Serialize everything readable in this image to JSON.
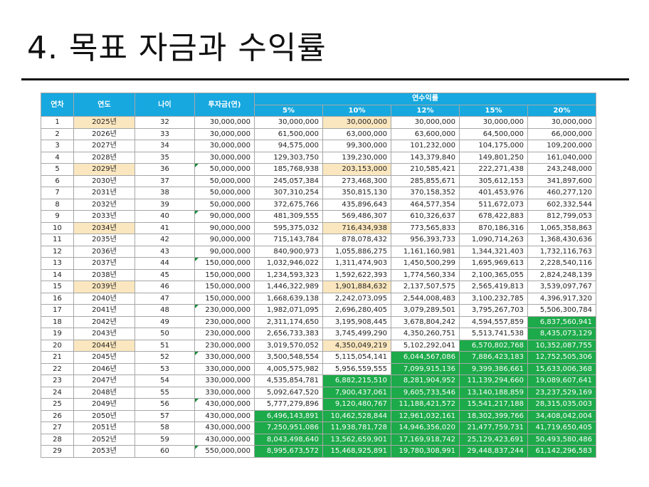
{
  "title": "4. 목표 자금과 수익률",
  "headers": {
    "year_no": "연차",
    "year": "연도",
    "age": "나이",
    "invest": "투자금(연)",
    "return_group": "연수익률",
    "rates": [
      "5%",
      "10%",
      "12%",
      "15%",
      "20%"
    ]
  },
  "rows": [
    {
      "n": "1",
      "y": "2025년",
      "a": "32",
      "inv": "30,000,000",
      "v": [
        "30,000,000",
        "30,000,000",
        "30,000,000",
        "30,000,000",
        "30,000,000"
      ]
    },
    {
      "n": "2",
      "y": "2026년",
      "a": "33",
      "inv": "30,000,000",
      "v": [
        "61,500,000",
        "63,000,000",
        "63,600,000",
        "64,500,000",
        "66,000,000"
      ]
    },
    {
      "n": "3",
      "y": "2027년",
      "a": "34",
      "inv": "30,000,000",
      "v": [
        "94,575,000",
        "99,300,000",
        "101,232,000",
        "104,175,000",
        "109,200,000"
      ]
    },
    {
      "n": "4",
      "y": "2028년",
      "a": "35",
      "inv": "30,000,000",
      "v": [
        "129,303,750",
        "139,230,000",
        "143,379,840",
        "149,801,250",
        "161,040,000"
      ]
    },
    {
      "n": "5",
      "y": "2029년",
      "a": "36",
      "inv": "50,000,000",
      "v": [
        "185,768,938",
        "203,153,000",
        "210,585,421",
        "222,271,438",
        "243,248,000"
      ]
    },
    {
      "n": "6",
      "y": "2030년",
      "a": "37",
      "inv": "50,000,000",
      "v": [
        "245,057,384",
        "273,468,300",
        "285,855,671",
        "305,612,153",
        "341,897,600"
      ]
    },
    {
      "n": "7",
      "y": "2031년",
      "a": "38",
      "inv": "50,000,000",
      "v": [
        "307,310,254",
        "350,815,130",
        "370,158,352",
        "401,453,976",
        "460,277,120"
      ]
    },
    {
      "n": "8",
      "y": "2032년",
      "a": "39",
      "inv": "50,000,000",
      "v": [
        "372,675,766",
        "435,896,643",
        "464,577,354",
        "511,672,073",
        "602,332,544"
      ]
    },
    {
      "n": "9",
      "y": "2033년",
      "a": "40",
      "inv": "90,000,000",
      "v": [
        "481,309,555",
        "569,486,307",
        "610,326,637",
        "678,422,883",
        "812,799,053"
      ]
    },
    {
      "n": "10",
      "y": "2034년",
      "a": "41",
      "inv": "90,000,000",
      "v": [
        "595,375,032",
        "716,434,938",
        "773,565,833",
        "870,186,316",
        "1,065,358,863"
      ]
    },
    {
      "n": "11",
      "y": "2035년",
      "a": "42",
      "inv": "90,000,000",
      "v": [
        "715,143,784",
        "878,078,432",
        "956,393,733",
        "1,090,714,263",
        "1,368,430,636"
      ]
    },
    {
      "n": "12",
      "y": "2036년",
      "a": "43",
      "inv": "90,000,000",
      "v": [
        "840,900,973",
        "1,055,886,275",
        "1,161,160,981",
        "1,344,321,403",
        "1,732,116,763"
      ]
    },
    {
      "n": "13",
      "y": "2037년",
      "a": "44",
      "inv": "150,000,000",
      "v": [
        "1,032,946,022",
        "1,311,474,903",
        "1,450,500,299",
        "1,695,969,613",
        "2,228,540,116"
      ]
    },
    {
      "n": "14",
      "y": "2038년",
      "a": "45",
      "inv": "150,000,000",
      "v": [
        "1,234,593,323",
        "1,592,622,393",
        "1,774,560,334",
        "2,100,365,055",
        "2,824,248,139"
      ]
    },
    {
      "n": "15",
      "y": "2039년",
      "a": "46",
      "inv": "150,000,000",
      "v": [
        "1,446,322,989",
        "1,901,884,632",
        "2,137,507,575",
        "2,565,419,813",
        "3,539,097,767"
      ]
    },
    {
      "n": "16",
      "y": "2040년",
      "a": "47",
      "inv": "150,000,000",
      "v": [
        "1,668,639,138",
        "2,242,073,095",
        "2,544,008,483",
        "3,100,232,785",
        "4,396,917,320"
      ]
    },
    {
      "n": "17",
      "y": "2041년",
      "a": "48",
      "inv": "230,000,000",
      "v": [
        "1,982,071,095",
        "2,696,280,405",
        "3,079,289,501",
        "3,795,267,703",
        "5,506,300,784"
      ]
    },
    {
      "n": "18",
      "y": "2042년",
      "a": "49",
      "inv": "230,000,000",
      "v": [
        "2,311,174,650",
        "3,195,908,445",
        "3,678,804,242",
        "4,594,557,859",
        "6,837,560,941"
      ]
    },
    {
      "n": "19",
      "y": "2043년",
      "a": "50",
      "inv": "230,000,000",
      "v": [
        "2,656,733,383",
        "3,745,499,290",
        "4,350,260,751",
        "5,513,741,538",
        "8,435,073,129"
      ]
    },
    {
      "n": "20",
      "y": "2044년",
      "a": "51",
      "inv": "230,000,000",
      "v": [
        "3,019,570,052",
        "4,350,049,219",
        "5,102,292,041",
        "6,570,802,768",
        "10,352,087,755"
      ]
    },
    {
      "n": "21",
      "y": "2045년",
      "a": "52",
      "inv": "330,000,000",
      "v": [
        "3,500,548,554",
        "5,115,054,141",
        "6,044,567,086",
        "7,886,423,183",
        "12,752,505,306"
      ]
    },
    {
      "n": "22",
      "y": "2046년",
      "a": "53",
      "inv": "330,000,000",
      "v": [
        "4,005,575,982",
        "5,956,559,555",
        "7,099,915,136",
        "9,399,386,661",
        "15,633,006,368"
      ]
    },
    {
      "n": "23",
      "y": "2047년",
      "a": "54",
      "inv": "330,000,000",
      "v": [
        "4,535,854,781",
        "6,882,215,510",
        "8,281,904,952",
        "11,139,294,660",
        "19,089,607,641"
      ]
    },
    {
      "n": "24",
      "y": "2048년",
      "a": "55",
      "inv": "330,000,000",
      "v": [
        "5,092,647,520",
        "7,900,437,061",
        "9,605,733,546",
        "13,140,188,859",
        "23,237,529,169"
      ]
    },
    {
      "n": "25",
      "y": "2049년",
      "a": "56",
      "inv": "430,000,000",
      "v": [
        "5,777,279,896",
        "9,120,480,767",
        "11,188,421,572",
        "15,541,217,188",
        "28,315,035,003"
      ]
    },
    {
      "n": "26",
      "y": "2050년",
      "a": "57",
      "inv": "430,000,000",
      "v": [
        "6,496,143,891",
        "10,462,528,844",
        "12,961,032,161",
        "18,302,399,766",
        "34,408,042,004"
      ]
    },
    {
      "n": "27",
      "y": "2051년",
      "a": "58",
      "inv": "430,000,000",
      "v": [
        "7,250,951,086",
        "11,938,781,728",
        "14,946,356,020",
        "21,477,759,731",
        "41,719,650,405"
      ]
    },
    {
      "n": "28",
      "y": "2052년",
      "a": "59",
      "inv": "430,000,000",
      "v": [
        "8,043,498,640",
        "13,562,659,901",
        "17,169,918,742",
        "25,129,423,691",
        "50,493,580,486"
      ]
    },
    {
      "n": "29",
      "y": "2053년",
      "a": "60",
      "inv": "550,000,000",
      "v": [
        "8,995,673,572",
        "15,468,925,891",
        "19,780,308,991",
        "29,448,837,244",
        "61,142,296,583"
      ]
    }
  ],
  "highlight_color": "#fbe7bf",
  "goal_color": "#1daa4a",
  "header_color": "#17a8df"
}
